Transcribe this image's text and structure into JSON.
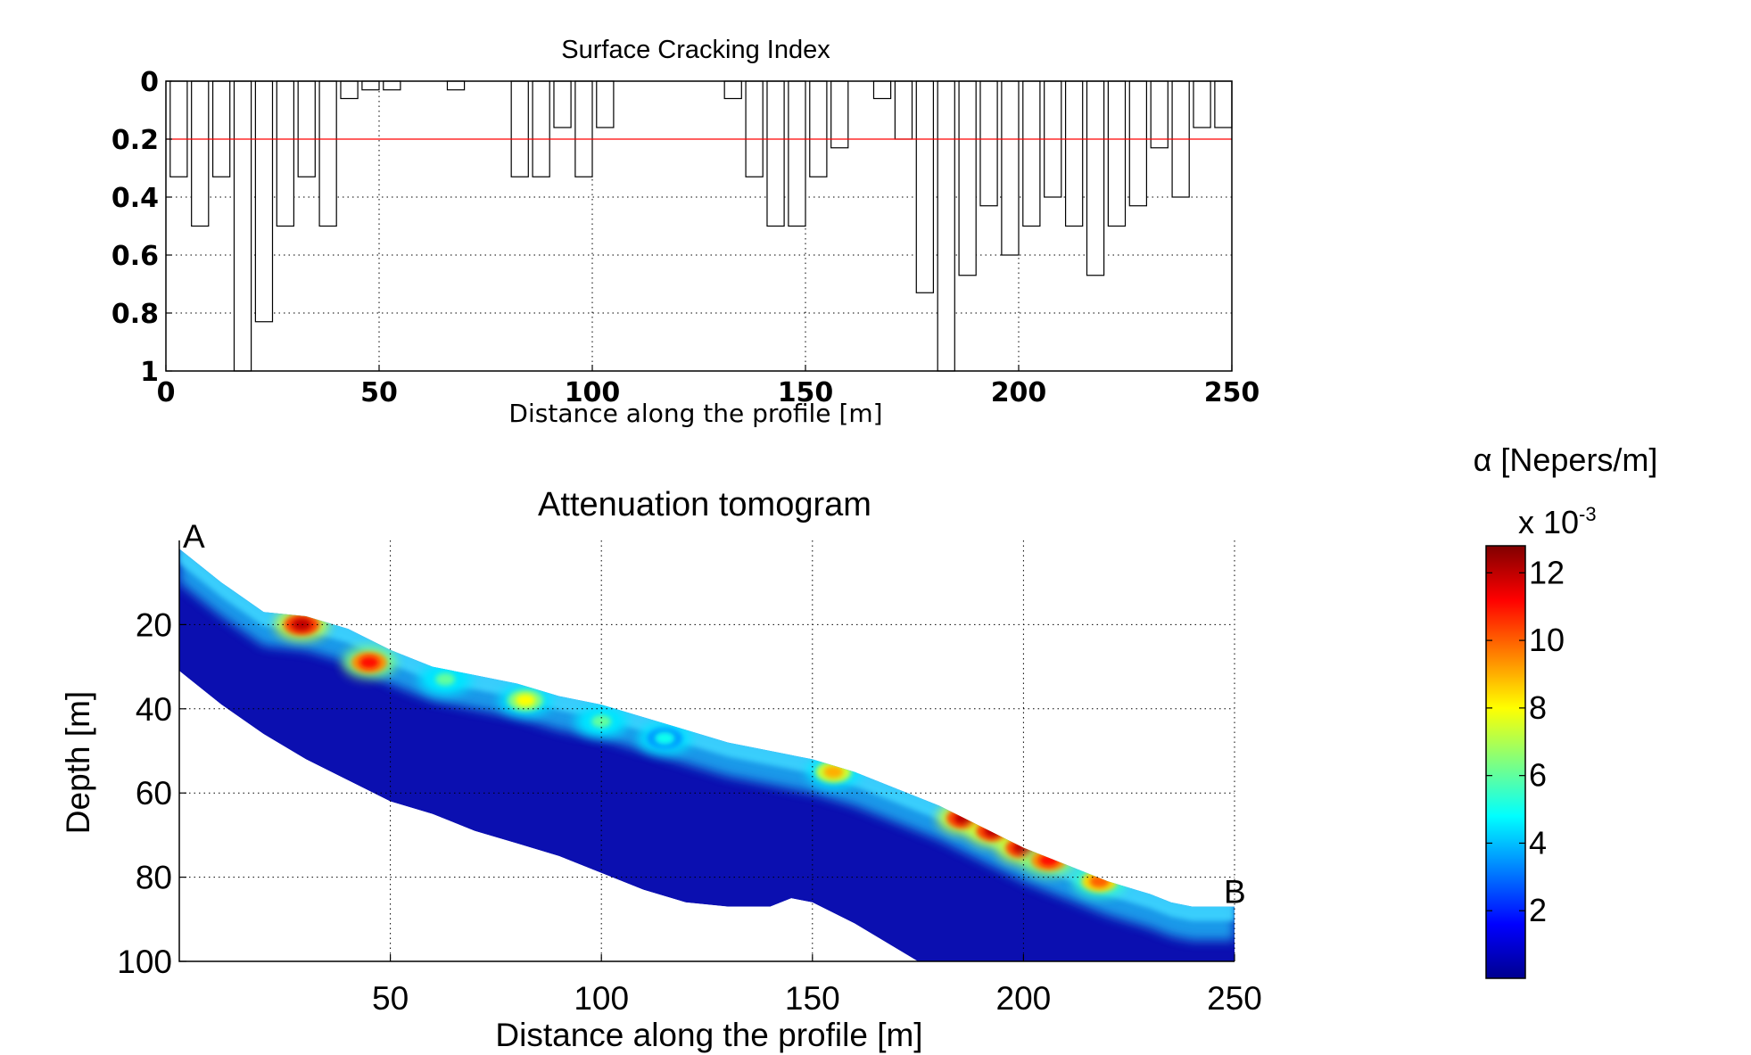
{
  "colors": {
    "threshold_line": "#ff0000",
    "axes": "#000000",
    "bar_fill": "#ffffff"
  },
  "chart_data": [
    {
      "type": "bar",
      "title": "Surface Cracking Index",
      "xlabel": "Distance along the profile [m]",
      "ylabel": "",
      "xlim": [
        0,
        250
      ],
      "ylim": [
        0,
        1
      ],
      "y_reversed": true,
      "xticks": [
        "0",
        "50",
        "100",
        "150",
        "200",
        "250"
      ],
      "yticks": [
        "0",
        "0.2",
        "0.4",
        "0.6",
        "0.8",
        "1"
      ],
      "grid": "dotted",
      "threshold": 0.2,
      "bar_width": 4,
      "x": [
        5,
        10,
        15,
        20,
        25,
        30,
        35,
        40,
        45,
        50,
        55,
        70,
        85,
        90,
        95,
        100,
        105,
        135,
        140,
        145,
        150,
        155,
        160,
        170,
        175,
        180,
        185,
        190,
        195,
        200,
        205,
        210,
        215,
        220,
        225,
        230,
        235,
        240,
        245,
        250
      ],
      "values": [
        0.33,
        0.5,
        0.33,
        1.0,
        0.83,
        0.5,
        0.33,
        0.5,
        0.06,
        0.03,
        0.03,
        0.03,
        0.33,
        0.33,
        0.16,
        0.33,
        0.16,
        0.06,
        0.33,
        0.5,
        0.5,
        0.33,
        0.23,
        0.06,
        0.2,
        0.73,
        1.0,
        0.67,
        0.43,
        0.6,
        0.5,
        0.4,
        0.5,
        0.67,
        0.5,
        0.43,
        0.23,
        0.4,
        0.16,
        0.16
      ]
    },
    {
      "type": "heatmap",
      "title": "Attenuation tomogram",
      "xlabel": "Distance along the profile [m]",
      "ylabel": "Depth [m]",
      "xlim": [
        0,
        250
      ],
      "ylim": [
        0,
        100
      ],
      "y_reversed": true,
      "xticks": [
        "50",
        "100",
        "150",
        "200",
        "250"
      ],
      "yticks": [
        "20",
        "40",
        "60",
        "80",
        "100"
      ],
      "grid": "dotted",
      "point_labels": [
        {
          "text": "A",
          "x": 0,
          "y": 0
        },
        {
          "text": "B",
          "x": 250,
          "y": 87
        }
      ],
      "surface": [
        [
          0,
          2
        ],
        [
          10,
          10
        ],
        [
          20,
          17
        ],
        [
          30,
          18
        ],
        [
          40,
          21
        ],
        [
          50,
          26
        ],
        [
          60,
          30
        ],
        [
          70,
          32
        ],
        [
          80,
          34
        ],
        [
          90,
          37
        ],
        [
          100,
          39
        ],
        [
          110,
          42
        ],
        [
          120,
          45
        ],
        [
          130,
          48
        ],
        [
          140,
          50
        ],
        [
          150,
          52
        ],
        [
          160,
          55
        ],
        [
          170,
          59
        ],
        [
          180,
          63
        ],
        [
          190,
          68
        ],
        [
          200,
          73
        ],
        [
          210,
          77
        ],
        [
          220,
          81
        ],
        [
          230,
          84
        ],
        [
          235,
          86
        ],
        [
          240,
          87
        ],
        [
          250,
          87
        ]
      ],
      "bottom": [
        [
          250,
          100
        ],
        [
          175,
          100
        ],
        [
          160,
          91
        ],
        [
          150,
          86
        ],
        [
          145,
          85
        ],
        [
          140,
          87
        ],
        [
          130,
          87
        ],
        [
          120,
          86
        ],
        [
          110,
          83
        ],
        [
          100,
          79
        ],
        [
          90,
          75
        ],
        [
          80,
          72
        ],
        [
          70,
          69
        ],
        [
          60,
          65
        ],
        [
          50,
          62
        ],
        [
          40,
          57
        ],
        [
          30,
          52
        ],
        [
          20,
          46
        ],
        [
          10,
          39
        ],
        [
          0,
          31
        ]
      ],
      "anomalies": [
        {
          "x": 29,
          "depth": 20,
          "value": 12
        },
        {
          "x": 45,
          "depth": 29,
          "value": 11
        },
        {
          "x": 63,
          "depth": 33,
          "value": 6
        },
        {
          "x": 82,
          "depth": 38,
          "value": 8
        },
        {
          "x": 100,
          "depth": 43,
          "value": 6
        },
        {
          "x": 115,
          "depth": 47,
          "value": 5
        },
        {
          "x": 155,
          "depth": 55,
          "value": 9
        },
        {
          "x": 186,
          "depth": 66,
          "value": 12
        },
        {
          "x": 193,
          "depth": 69,
          "value": 12
        },
        {
          "x": 200,
          "depth": 73,
          "value": 12
        },
        {
          "x": 206,
          "depth": 76,
          "value": 11
        },
        {
          "x": 218,
          "depth": 81,
          "value": 10
        }
      ],
      "colorbar": {
        "label": "α [Nepers/m]",
        "multiplier_base": "x 10",
        "multiplier_exp": "-3",
        "range": [
          0,
          12.8
        ],
        "ticks": [
          "2",
          "4",
          "6",
          "8",
          "10",
          "12"
        ],
        "colormap": "jet"
      }
    }
  ]
}
